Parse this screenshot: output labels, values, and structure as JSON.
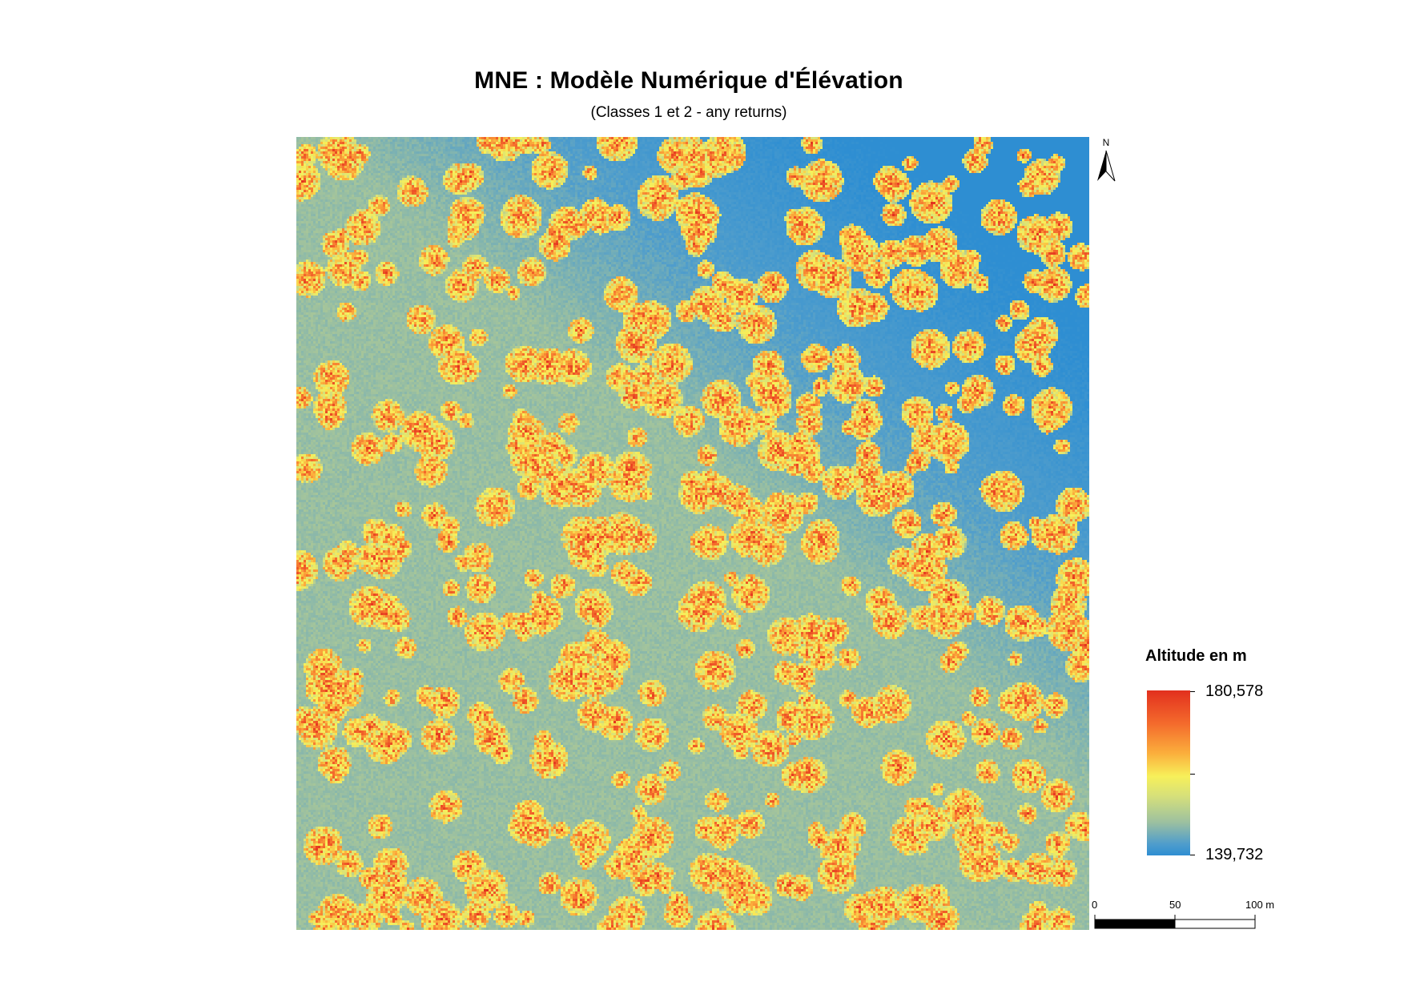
{
  "title": "MNE : Modèle Numérique d'Élévation",
  "subtitle": "(Classes 1 et 2 - any returns)",
  "north_arrow": {
    "label": "N",
    "icon": "north-arrow-icon"
  },
  "legend": {
    "title": "Altitude en m",
    "max_label": "180,578",
    "min_label": "139,732",
    "max_value": 180.578,
    "min_value": 139.732,
    "ramp_colors": [
      "#2e8ed2",
      "#4f9dcc",
      "#9cc0a0",
      "#d6e07a",
      "#f7f05a",
      "#fbae3c",
      "#f46a2c",
      "#e2301e"
    ]
  },
  "scale_bar": {
    "labels": [
      "0",
      "50",
      "100 m"
    ],
    "unit": "m",
    "segments": [
      "black",
      "white"
    ]
  }
}
